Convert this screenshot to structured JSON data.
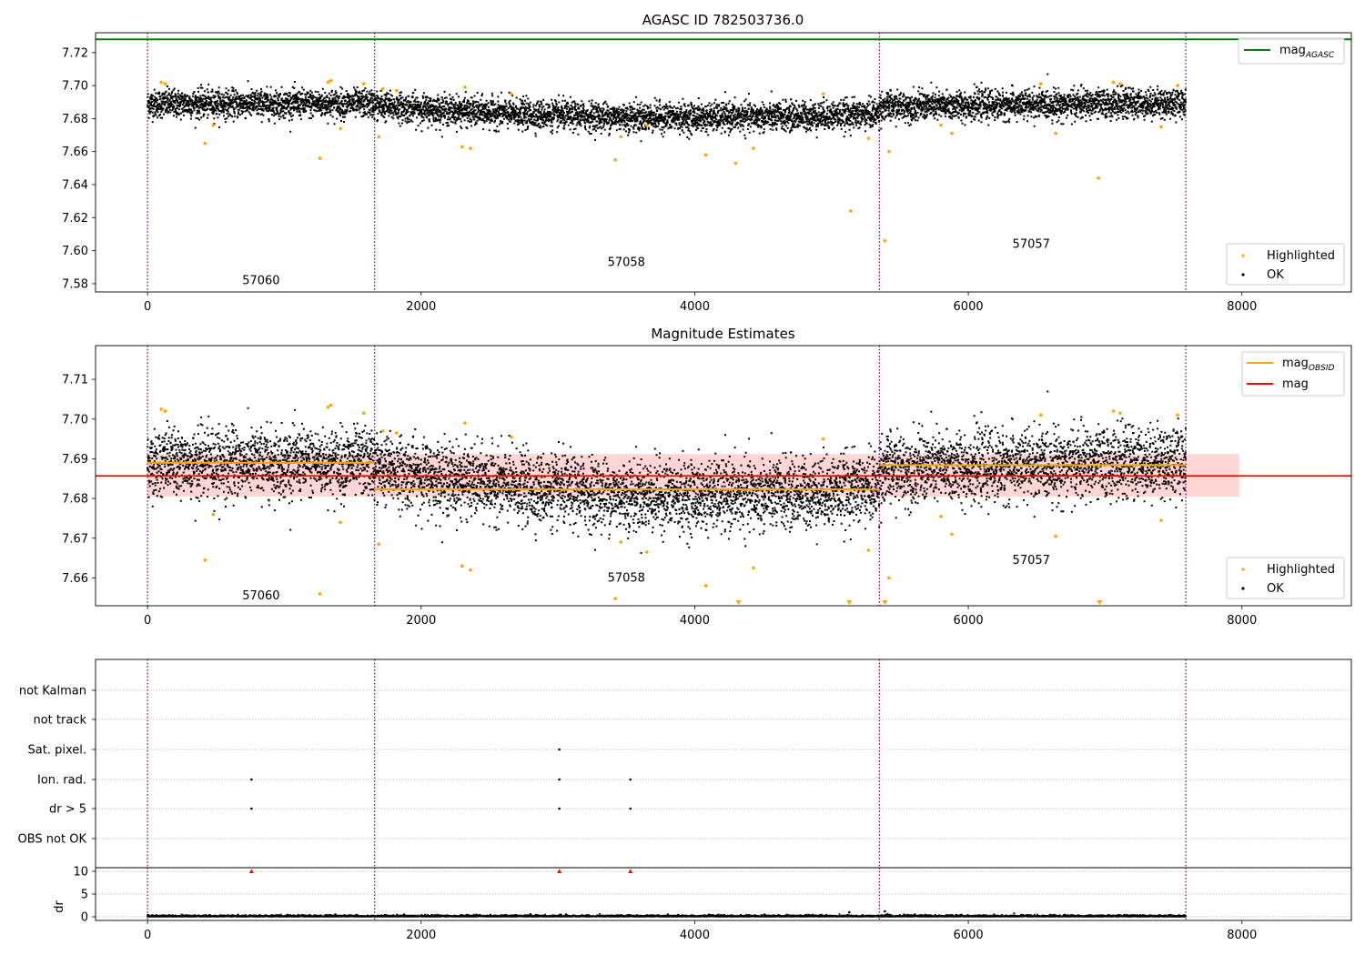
{
  "colors": {
    "ok": "#000000",
    "highlighted": "#ffa500",
    "mag_agasc": "#008000",
    "mag": "#ff0000",
    "mag_band": "#ffcccc",
    "obsid_line": "#ffa500",
    "boundary": "#800080",
    "flag_grid": "#b0b0b0"
  },
  "chart_data": [
    {
      "id": "top",
      "type": "scatter",
      "title": "AGASC ID 782503736.0",
      "xlim": [
        -380,
        8800
      ],
      "ylim": [
        7.575,
        7.732
      ],
      "xticks": [
        0,
        2000,
        4000,
        6000,
        8000
      ],
      "yticks": [
        7.58,
        7.6,
        7.62,
        7.64,
        7.66,
        7.68,
        7.7,
        7.72
      ],
      "mag_agasc": 7.728,
      "legend_upper": [
        {
          "label": "mag",
          "sub": "AGASC",
          "kind": "line"
        }
      ],
      "legend_lower": [
        {
          "label": "Highlighted",
          "kind": "dot"
        },
        {
          "label": "OK",
          "kind": "dot"
        }
      ],
      "obsid_labels": [
        {
          "text": "57060",
          "x": 830,
          "y": 7.582
        },
        {
          "text": "57058",
          "x": 3500,
          "y": 7.593
        },
        {
          "text": "57057",
          "x": 6460,
          "y": 7.604
        }
      ],
      "highlighted_points": [
        [
          100,
          7.702
        ],
        [
          130,
          7.701
        ],
        [
          420,
          7.665
        ],
        [
          480,
          7.676
        ],
        [
          1260,
          7.656
        ],
        [
          1320,
          7.702
        ],
        [
          1340,
          7.703
        ],
        [
          1410,
          7.674
        ],
        [
          1580,
          7.701
        ],
        [
          1690,
          7.669
        ],
        [
          1720,
          7.698
        ],
        [
          1820,
          7.697
        ],
        [
          2300,
          7.663
        ],
        [
          2320,
          7.699
        ],
        [
          2360,
          7.662
        ],
        [
          2660,
          7.695
        ],
        [
          3420,
          7.655
        ],
        [
          3460,
          7.669
        ],
        [
          3650,
          7.676
        ],
        [
          4080,
          7.658
        ],
        [
          4300,
          7.653
        ],
        [
          4430,
          7.662
        ],
        [
          4940,
          7.695
        ],
        [
          5140,
          7.624
        ],
        [
          5270,
          7.668
        ],
        [
          5390,
          7.606
        ],
        [
          5420,
          7.66
        ],
        [
          5800,
          7.676
        ],
        [
          5880,
          7.671
        ],
        [
          6530,
          7.701
        ],
        [
          6640,
          7.671
        ],
        [
          6950,
          7.644
        ],
        [
          7060,
          7.702
        ],
        [
          7110,
          7.701
        ],
        [
          7410,
          7.675
        ],
        [
          7530,
          7.7
        ]
      ]
    },
    {
      "id": "middle",
      "type": "scatter",
      "title": "Magnitude Estimates",
      "xlim": [
        -380,
        8800
      ],
      "ylim": [
        7.653,
        7.7185
      ],
      "xticks": [
        0,
        2000,
        4000,
        6000,
        8000
      ],
      "yticks": [
        7.66,
        7.67,
        7.68,
        7.69,
        7.7,
        7.71
      ],
      "mag": 7.6857,
      "mag_band": [
        7.6805,
        7.6912
      ],
      "mag_span": [
        0,
        7980
      ],
      "mag_obsid": [
        {
          "x0": 0,
          "x1": 1660,
          "y": 7.689
        },
        {
          "x0": 1660,
          "x1": 5350,
          "y": 7.6823
        },
        {
          "x0": 5350,
          "x1": 7590,
          "y": 7.6884
        }
      ],
      "legend_upper": [
        {
          "label": "mag",
          "sub": "OBSID",
          "kind": "line"
        },
        {
          "label": "mag",
          "sub": "",
          "kind": "line"
        }
      ],
      "legend_lower": [
        {
          "label": "Highlighted",
          "kind": "dot"
        },
        {
          "label": "OK",
          "kind": "dot"
        }
      ],
      "obsid_labels": [
        {
          "text": "57060",
          "x": 830,
          "y": 7.6555
        },
        {
          "text": "57058",
          "x": 3500,
          "y": 7.66
        },
        {
          "text": "57057",
          "x": 6460,
          "y": 7.6645
        }
      ],
      "highlighted_points": [
        [
          100,
          7.7025
        ],
        [
          130,
          7.702
        ],
        [
          420,
          7.6645
        ],
        [
          480,
          7.676
        ],
        [
          1260,
          7.656
        ],
        [
          1320,
          7.703
        ],
        [
          1340,
          7.7035
        ],
        [
          1410,
          7.674
        ],
        [
          1580,
          7.7015
        ],
        [
          1690,
          7.6685
        ],
        [
          1720,
          7.697
        ],
        [
          1820,
          7.6965
        ],
        [
          2300,
          7.663
        ],
        [
          2320,
          7.699
        ],
        [
          2360,
          7.662
        ],
        [
          2660,
          7.6955
        ],
        [
          3420,
          7.6548
        ],
        [
          3460,
          7.669
        ],
        [
          3650,
          7.6665
        ],
        [
          4080,
          7.658
        ],
        [
          4430,
          7.6625
        ],
        [
          4940,
          7.695
        ],
        [
          5270,
          7.667
        ],
        [
          5420,
          7.66
        ],
        [
          5800,
          7.6755
        ],
        [
          5880,
          7.671
        ],
        [
          6530,
          7.701
        ],
        [
          6640,
          7.6705
        ],
        [
          7060,
          7.702
        ],
        [
          7110,
          7.7015
        ],
        [
          7410,
          7.6745
        ],
        [
          7530,
          7.701
        ]
      ],
      "clipped_markers": [
        4320,
        5130,
        5390,
        6960
      ]
    },
    {
      "id": "flags",
      "type": "scatter",
      "xlim": [
        -380,
        8800
      ],
      "categories": [
        "not Kalman",
        "not track",
        "Sat. pixel.",
        "Ion. rad.",
        "dr > 5",
        "OBS not OK"
      ],
      "flag_points": [
        {
          "category": "Sat. pixel.",
          "x": [
            3010
          ]
        },
        {
          "category": "Ion. rad.",
          "x": [
            760,
            3010,
            3530
          ]
        },
        {
          "category": "dr > 5",
          "x": [
            760,
            3010,
            3530
          ]
        }
      ]
    },
    {
      "id": "dr",
      "type": "scatter",
      "ylabel": "dr",
      "xlim": [
        -380,
        8800
      ],
      "ylim": [
        -0.8,
        10.8
      ],
      "xticks": [
        0,
        2000,
        4000,
        6000,
        8000
      ],
      "yticks": [
        0,
        5,
        10
      ],
      "clipped_markers": [
        760,
        3010,
        3530
      ],
      "outliers": [
        [
          5130,
          1.0
        ],
        [
          5390,
          1.2
        ],
        [
          5410,
          0.6
        ]
      ]
    }
  ],
  "obsid_boundaries": [
    0,
    1660,
    5350,
    7590
  ],
  "ok_series": {
    "n_points": 7590,
    "segments": [
      {
        "x0": 0,
        "x1": 1660,
        "mean": 7.689,
        "sd": 0.0042
      },
      {
        "x0": 1660,
        "x1": 5350,
        "mean": 7.6822,
        "sd": 0.0043,
        "dip_depth": 0.0045,
        "dip_center": 4000
      },
      {
        "x0": 5350,
        "x1": 7590,
        "mean": 7.6884,
        "sd": 0.0043,
        "slope": 0.0022
      }
    ]
  }
}
